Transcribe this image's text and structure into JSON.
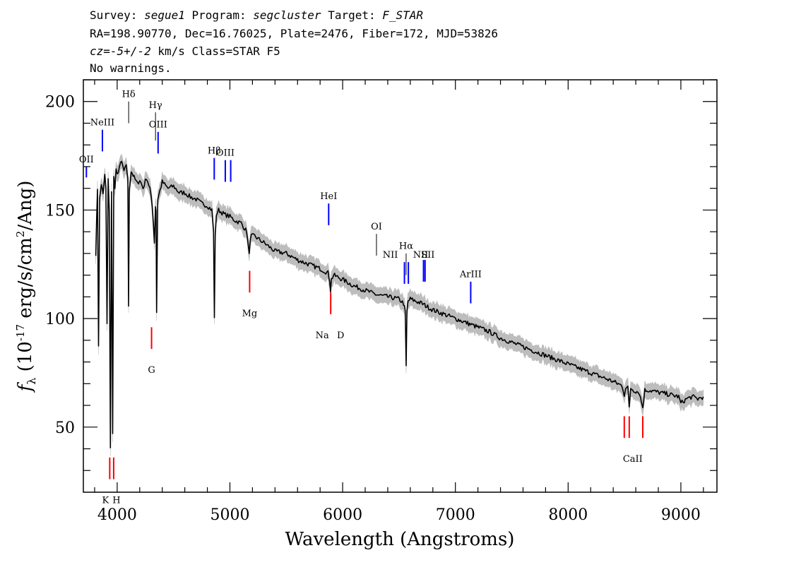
{
  "header": {
    "survey_label": "Survey:",
    "survey": "segue1",
    "program_label": "Program:",
    "program": "segcluster",
    "target_label": "Target:",
    "target": "F_STAR",
    "line2": "RA=198.90770, Dec=16.76025, Plate=2476, Fiber=172, MJD=53826",
    "cz_label": "cz=",
    "cz_value": "-5+/-2",
    "cz_rest": " km/s Class=STAR F5",
    "line4": "No warnings."
  },
  "colors": {
    "spectrum": "#000000",
    "error_band": "#bdbdbd",
    "emission": "#0000ff",
    "absorption": "#ff0000",
    "neutral": "#000000"
  },
  "chart_data": {
    "type": "line",
    "title": "",
    "xlabel": "Wavelength (Angstroms)",
    "ylabel_prefix": "f",
    "ylabel_sub": "λ",
    "ylabel_main": " (10",
    "ylabel_exp": "-17",
    "ylabel_rest": " erg/s/cm",
    "ylabel_exp2": "2",
    "ylabel_end": "/Ang)",
    "xlim": [
      3700,
      9320
    ],
    "ylim": [
      20,
      210
    ],
    "xticks": [
      4000,
      5000,
      6000,
      7000,
      8000,
      9000
    ],
    "xtick_labels": [
      "4000",
      "5000",
      "6000",
      "7000",
      "8000",
      "9000"
    ],
    "yticks": [
      50,
      100,
      150,
      200
    ],
    "ytick_labels": [
      "50",
      "100",
      "150",
      "200"
    ],
    "grid": false,
    "legend": "none",
    "series": [
      {
        "x": [
          3810,
          3825,
          3835,
          3845,
          3860,
          3875,
          3890,
          3900,
          3910,
          3920,
          3930,
          3940,
          3950,
          3960,
          3970,
          3980,
          3990,
          4000,
          4020,
          4040,
          4060,
          4080,
          4095,
          4101,
          4108,
          4125,
          4150,
          4180,
          4200,
          4230,
          4260,
          4290,
          4310,
          4320,
          4330,
          4340,
          4345,
          4350,
          4360,
          4400,
          4450,
          4500,
          4550,
          4600,
          4650,
          4700,
          4750,
          4800,
          4840,
          4855,
          4862,
          4870,
          4880,
          4900,
          4950,
          5000,
          5050,
          5100,
          5150,
          5165,
          5172,
          5180,
          5190,
          5220,
          5270,
          5300,
          5350,
          5400,
          5500,
          5600,
          5700,
          5800,
          5870,
          5885,
          5893,
          5900,
          5920,
          6000,
          6100,
          6200,
          6300,
          6400,
          6500,
          6540,
          6555,
          6563,
          6570,
          6580,
          6600,
          6700,
          6800,
          6900,
          7000,
          7100,
          7200,
          7300,
          7400,
          7500,
          7600,
          7700,
          7800,
          7900,
          8000,
          8100,
          8200,
          8300,
          8400,
          8480,
          8498,
          8510,
          8530,
          8542,
          8555,
          8580,
          8630,
          8662,
          8680,
          8720,
          8800,
          8900,
          8980,
          9000,
          9050,
          9100,
          9150,
          9200
        ],
        "y": [
          130,
          160,
          88,
          155,
          162,
          157,
          166,
          160,
          97,
          165,
          150,
          40,
          158,
          48,
          165,
          160,
          168,
          166,
          170,
          172,
          168,
          170,
          165,
          105,
          160,
          168,
          165,
          162,
          164,
          160,
          165,
          160,
          152,
          145,
          135,
          152,
          150,
          103,
          155,
          163,
          160,
          161,
          158,
          158,
          156,
          155,
          153,
          152,
          150,
          140,
          101,
          138,
          148,
          150,
          148,
          147,
          145,
          144,
          140,
          132,
          131,
          135,
          138,
          138,
          136,
          135,
          133,
          131,
          130,
          127,
          125,
          123,
          121,
          118,
          113,
          118,
          120,
          118,
          115,
          113,
          111,
          110,
          109,
          107,
          103,
          78,
          103,
          108,
          109,
          107,
          104,
          102,
          100,
          98,
          96,
          94,
          91,
          89,
          87,
          85,
          83,
          81,
          79,
          77,
          75,
          73,
          71,
          69,
          65,
          68,
          68,
          59,
          68,
          67,
          66,
          59,
          67,
          67,
          66,
          65,
          64,
          61,
          63,
          64,
          63,
          64
        ],
        "err": 3
      }
    ],
    "annotations": [
      {
        "label": "OII",
        "lam": 3727,
        "color": "blue",
        "y1": 165,
        "y2": 170,
        "ly": 172
      },
      {
        "label": "NeIII",
        "lam": 3869,
        "color": "blue",
        "y1": 177,
        "y2": 187,
        "ly": 189
      },
      {
        "label": "Hδ",
        "lam": 4102,
        "color": "black",
        "y1": 190,
        "y2": 200,
        "ly": 202
      },
      {
        "label": "Hγ",
        "lam": 4340,
        "color": "black",
        "y1": 182,
        "y2": 195,
        "ly": 197
      },
      {
        "label": "OIII",
        "lam": 4363,
        "color": "blue",
        "y1": 176,
        "y2": 186,
        "ly": 188
      },
      {
        "label": "Hβ",
        "lam": 4861,
        "color": "blue",
        "y1": 164,
        "y2": 174,
        "ly": 176
      },
      {
        "label": "OIII",
        "lam": 4959,
        "color": "blue",
        "y1": 163,
        "y2": 173,
        "ly": 175
      },
      {
        "label": "",
        "lam": 5007,
        "color": "blue",
        "y1": 163,
        "y2": 173
      },
      {
        "label": "HeI",
        "lam": 5876,
        "color": "blue",
        "y1": 143,
        "y2": 153,
        "ly": 155
      },
      {
        "label": "OI",
        "lam": 6300,
        "color": "black",
        "y1": 129,
        "y2": 139,
        "ly": 141
      },
      {
        "label": "NII",
        "lam": 6548,
        "color": "blue",
        "y1": 116,
        "y2": 126,
        "ly": 128
      },
      {
        "label": "Hα",
        "lam": 6563,
        "color": "black",
        "y1": 120,
        "y2": 130,
        "ly": 132
      },
      {
        "label": "",
        "lam": 6583,
        "color": "blue",
        "y1": 116,
        "y2": 126
      },
      {
        "label": "NII",
        "lam": 6717,
        "color": "blue",
        "y1": 117,
        "y2": 127,
        "ly": 128
      },
      {
        "label": "SII",
        "lam": 6731,
        "color": "blue",
        "y1": 117,
        "y2": 127,
        "ly": 128
      },
      {
        "label": "ArIII",
        "lam": 7136,
        "color": "blue",
        "y1": 107,
        "y2": 117,
        "ly": 119
      },
      {
        "label": "K",
        "lam": 3934,
        "color": "red",
        "y1": 26,
        "y2": 36,
        "ly": 15
      },
      {
        "label": "H",
        "lam": 3969,
        "color": "red",
        "y1": 26,
        "y2": 36,
        "ly": 15
      },
      {
        "label": "G",
        "lam": 4305,
        "color": "red",
        "y1": 86,
        "y2": 96,
        "ly": 75
      },
      {
        "label": "Mg",
        "lam": 5175,
        "color": "red",
        "y1": 112,
        "y2": 122,
        "ly": 101
      },
      {
        "label": "Na",
        "lam": 5894,
        "color": "red",
        "y1": 102,
        "y2": 112,
        "ly": 91
      },
      {
        "label": "D",
        "lam": 5894,
        "color": "none",
        "ly": 91
      },
      {
        "label": "CaII",
        "lam": 8498,
        "color": "red",
        "y1": 45,
        "y2": 55,
        "ly": 34
      },
      {
        "label": "",
        "lam": 8542,
        "color": "red",
        "y1": 45,
        "y2": 55
      },
      {
        "label": "",
        "lam": 8662,
        "color": "red",
        "y1": 45,
        "y2": 55
      }
    ]
  }
}
